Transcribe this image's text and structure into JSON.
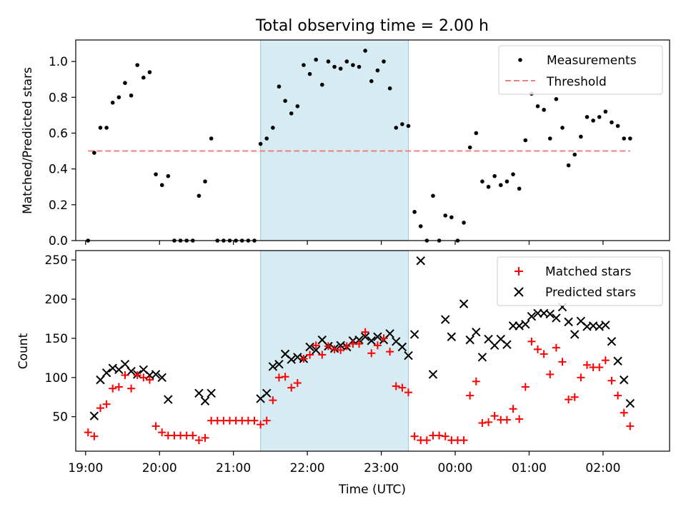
{
  "chart_data": [
    {
      "type": "scatter",
      "title": "Total observing time = 2.00 h",
      "xlabel": "",
      "ylabel": "Matched/Predicted stars",
      "xlim": [
        "18:52",
        "02:54"
      ],
      "ylim": [
        0.0,
        1.12
      ],
      "yticks": [
        "0.0",
        "0.2",
        "0.4",
        "0.6",
        "0.8",
        "1.0"
      ],
      "grid": false,
      "legend_position": "top-right",
      "highlight_region": [
        "21:22",
        "23:22"
      ],
      "series": [
        {
          "name": "Measurements",
          "marker": "dot",
          "color": "#000000",
          "points": [
            [
              "19:02",
              0.0
            ],
            [
              "19:07",
              0.49
            ],
            [
              "19:12",
              0.63
            ],
            [
              "19:17",
              0.63
            ],
            [
              "19:22",
              0.77
            ],
            [
              "19:27",
              0.8
            ],
            [
              "19:32",
              0.88
            ],
            [
              "19:37",
              0.81
            ],
            [
              "19:42",
              0.98
            ],
            [
              "19:47",
              0.91
            ],
            [
              "19:52",
              0.94
            ],
            [
              "19:57",
              0.37
            ],
            [
              "20:02",
              0.31
            ],
            [
              "20:07",
              0.36
            ],
            [
              "20:12",
              0.0
            ],
            [
              "20:17",
              0.0
            ],
            [
              "20:22",
              0.0
            ],
            [
              "20:27",
              0.0
            ],
            [
              "20:32",
              0.25
            ],
            [
              "20:37",
              0.33
            ],
            [
              "20:42",
              0.57
            ],
            [
              "20:47",
              0.0
            ],
            [
              "20:52",
              0.0
            ],
            [
              "20:57",
              0.0
            ],
            [
              "21:02",
              0.0
            ],
            [
              "21:07",
              0.0
            ],
            [
              "21:12",
              0.0
            ],
            [
              "21:17",
              0.0
            ],
            [
              "21:22",
              0.54
            ],
            [
              "21:27",
              0.57
            ],
            [
              "21:32",
              0.63
            ],
            [
              "21:37",
              0.86
            ],
            [
              "21:42",
              0.78
            ],
            [
              "21:47",
              0.71
            ],
            [
              "21:52",
              0.75
            ],
            [
              "21:57",
              0.98
            ],
            [
              "22:02",
              0.93
            ],
            [
              "22:07",
              1.01
            ],
            [
              "22:12",
              0.87
            ],
            [
              "22:17",
              1.0
            ],
            [
              "22:22",
              0.97
            ],
            [
              "22:27",
              0.96
            ],
            [
              "22:32",
              1.0
            ],
            [
              "22:37",
              0.98
            ],
            [
              "22:42",
              0.97
            ],
            [
              "22:47",
              1.06
            ],
            [
              "22:52",
              0.89
            ],
            [
              "22:57",
              0.95
            ],
            [
              "23:02",
              1.0
            ],
            [
              "23:07",
              0.85
            ],
            [
              "23:12",
              0.63
            ],
            [
              "23:17",
              0.65
            ],
            [
              "23:22",
              0.64
            ],
            [
              "23:27",
              0.16
            ],
            [
              "23:32",
              0.08
            ],
            [
              "23:37",
              0.0
            ],
            [
              "23:42",
              0.25
            ],
            [
              "23:47",
              0.0
            ],
            [
              "23:52",
              0.14
            ],
            [
              "23:57",
              0.13
            ],
            [
              "00:02",
              0.0
            ],
            [
              "00:07",
              0.1
            ],
            [
              "00:12",
              0.52
            ],
            [
              "00:17",
              0.6
            ],
            [
              "00:22",
              0.33
            ],
            [
              "00:27",
              0.3
            ],
            [
              "00:32",
              0.36
            ],
            [
              "00:37",
              0.31
            ],
            [
              "00:42",
              0.33
            ],
            [
              "00:47",
              0.37
            ],
            [
              "00:52",
              0.29
            ],
            [
              "00:57",
              0.56
            ],
            [
              "01:02",
              0.82
            ],
            [
              "01:07",
              0.75
            ],
            [
              "01:12",
              0.73
            ],
            [
              "01:17",
              0.57
            ],
            [
              "01:22",
              0.79
            ],
            [
              "01:27",
              0.63
            ],
            [
              "01:32",
              0.42
            ],
            [
              "01:37",
              0.48
            ],
            [
              "01:42",
              0.58
            ],
            [
              "01:47",
              0.69
            ],
            [
              "01:52",
              0.67
            ],
            [
              "01:57",
              0.69
            ],
            [
              "02:02",
              0.72
            ],
            [
              "02:07",
              0.66
            ],
            [
              "02:12",
              0.64
            ],
            [
              "02:17",
              0.57
            ],
            [
              "02:22",
              0.57
            ]
          ]
        },
        {
          "name": "Threshold",
          "marker": "dashed-line",
          "color": "#f08080",
          "points": [
            [
              "19:02",
              0.5
            ],
            [
              "02:22",
              0.5
            ]
          ]
        }
      ]
    },
    {
      "type": "scatter",
      "title": "",
      "xlabel": "Time (UTC)",
      "ylabel": "Count",
      "xlim": [
        "18:52",
        "02:54"
      ],
      "ylim": [
        6,
        262
      ],
      "xticks": [
        "19:00",
        "20:00",
        "21:00",
        "22:00",
        "23:00",
        "00:00",
        "01:00",
        "02:00"
      ],
      "yticks": [
        "50",
        "100",
        "150",
        "200",
        "250"
      ],
      "grid": false,
      "legend_position": "top-right",
      "highlight_region": [
        "21:22",
        "23:22"
      ],
      "series": [
        {
          "name": "Matched stars",
          "marker": "plus",
          "color": "#ff0000",
          "points": [
            [
              "19:02",
              30
            ],
            [
              "19:07",
              25
            ],
            [
              "19:12",
              61
            ],
            [
              "19:17",
              66
            ],
            [
              "19:22",
              86
            ],
            [
              "19:27",
              88
            ],
            [
              "19:32",
              103
            ],
            [
              "19:37",
              86
            ],
            [
              "19:42",
              103
            ],
            [
              "19:47",
              100
            ],
            [
              "19:52",
              97
            ],
            [
              "19:57",
              38
            ],
            [
              "20:02",
              30
            ],
            [
              "20:07",
              26
            ],
            [
              "20:12",
              26
            ],
            [
              "20:17",
              26
            ],
            [
              "20:22",
              26
            ],
            [
              "20:27",
              26
            ],
            [
              "20:32",
              20
            ],
            [
              "20:37",
              23
            ],
            [
              "20:42",
              45
            ],
            [
              "20:47",
              45
            ],
            [
              "20:52",
              45
            ],
            [
              "20:57",
              45
            ],
            [
              "21:02",
              45
            ],
            [
              "21:07",
              45
            ],
            [
              "21:12",
              45
            ],
            [
              "21:17",
              45
            ],
            [
              "21:22",
              40
            ],
            [
              "21:27",
              45
            ],
            [
              "21:32",
              71
            ],
            [
              "21:37",
              100
            ],
            [
              "21:42",
              101
            ],
            [
              "21:47",
              87
            ],
            [
              "21:52",
              93
            ],
            [
              "21:57",
              124
            ],
            [
              "22:02",
              129
            ],
            [
              "22:07",
              141
            ],
            [
              "22:12",
              129
            ],
            [
              "22:17",
              140
            ],
            [
              "22:22",
              136
            ],
            [
              "22:27",
              135
            ],
            [
              "22:32",
              140
            ],
            [
              "22:37",
              143
            ],
            [
              "22:42",
              143
            ],
            [
              "22:47",
              158
            ],
            [
              "22:52",
              131
            ],
            [
              "22:57",
              141
            ],
            [
              "23:02",
              150
            ],
            [
              "23:07",
              133
            ],
            [
              "23:12",
              89
            ],
            [
              "23:17",
              87
            ],
            [
              "23:22",
              81
            ],
            [
              "23:27",
              25
            ],
            [
              "23:32",
              20
            ],
            [
              "23:37",
              20
            ],
            [
              "23:42",
              26
            ],
            [
              "23:47",
              26
            ],
            [
              "23:52",
              25
            ],
            [
              "23:57",
              20
            ],
            [
              "00:02",
              20
            ],
            [
              "00:07",
              20
            ],
            [
              "00:12",
              77
            ],
            [
              "00:17",
              95
            ],
            [
              "00:22",
              42
            ],
            [
              "00:27",
              43
            ],
            [
              "00:32",
              51
            ],
            [
              "00:37",
              46
            ],
            [
              "00:42",
              46
            ],
            [
              "00:47",
              60
            ],
            [
              "00:52",
              47
            ],
            [
              "00:57",
              88
            ],
            [
              "01:02",
              146
            ],
            [
              "01:07",
              136
            ],
            [
              "01:12",
              130
            ],
            [
              "01:17",
              104
            ],
            [
              "01:22",
              138
            ],
            [
              "01:27",
              120
            ],
            [
              "01:32",
              72
            ],
            [
              "01:37",
              75
            ],
            [
              "01:42",
              100
            ],
            [
              "01:47",
              116
            ],
            [
              "01:52",
              113
            ],
            [
              "01:57",
              113
            ],
            [
              "02:02",
              122
            ],
            [
              "02:07",
              96
            ],
            [
              "02:12",
              77
            ],
            [
              "02:17",
              55
            ],
            [
              "02:22",
              38
            ]
          ]
        },
        {
          "name": "Predicted stars",
          "marker": "x",
          "color": "#000000",
          "points": [
            [
              "19:07",
              51
            ],
            [
              "19:12",
              97
            ],
            [
              "19:17",
              106
            ],
            [
              "19:22",
              112
            ],
            [
              "19:27",
              110
            ],
            [
              "19:32",
              117
            ],
            [
              "19:37",
              108
            ],
            [
              "19:42",
              104
            ],
            [
              "19:47",
              110
            ],
            [
              "19:52",
              103
            ],
            [
              "19:57",
              104
            ],
            [
              "20:02",
              100
            ],
            [
              "20:07",
              72
            ],
            [
              "20:32",
              80
            ],
            [
              "20:37",
              70
            ],
            [
              "20:42",
              80
            ],
            [
              "21:22",
              73
            ],
            [
              "21:27",
              80
            ],
            [
              "21:32",
              114
            ],
            [
              "21:37",
              117
            ],
            [
              "21:42",
              130
            ],
            [
              "21:47",
              123
            ],
            [
              "21:52",
              126
            ],
            [
              "21:57",
              124
            ],
            [
              "22:02",
              139
            ],
            [
              "22:07",
              135
            ],
            [
              "22:12",
              148
            ],
            [
              "22:17",
              140
            ],
            [
              "22:22",
              137
            ],
            [
              "22:27",
              141
            ],
            [
              "22:32",
              139
            ],
            [
              "22:37",
              147
            ],
            [
              "22:42",
              148
            ],
            [
              "22:47",
              152
            ],
            [
              "22:52",
              147
            ],
            [
              "22:57",
              152
            ],
            [
              "23:02",
              148
            ],
            [
              "23:07",
              156
            ],
            [
              "23:12",
              146
            ],
            [
              "23:17",
              139
            ],
            [
              "23:22",
              128
            ],
            [
              "23:27",
              155
            ],
            [
              "23:32",
              249
            ],
            [
              "23:42",
              104
            ],
            [
              "23:52",
              174
            ],
            [
              "23:57",
              152
            ],
            [
              "00:07",
              194
            ],
            [
              "00:12",
              148
            ],
            [
              "00:17",
              158
            ],
            [
              "00:22",
              126
            ],
            [
              "00:27",
              149
            ],
            [
              "00:32",
              141
            ],
            [
              "00:37",
              149
            ],
            [
              "00:42",
              142
            ],
            [
              "00:47",
              166
            ],
            [
              "00:52",
              166
            ],
            [
              "00:57",
              168
            ],
            [
              "01:02",
              178
            ],
            [
              "01:07",
              182
            ],
            [
              "01:12",
              182
            ],
            [
              "01:17",
              181
            ],
            [
              "01:22",
              176
            ],
            [
              "01:27",
              190
            ],
            [
              "01:32",
              171
            ],
            [
              "01:37",
              155
            ],
            [
              "01:42",
              172
            ],
            [
              "01:47",
              165
            ],
            [
              "01:52",
              166
            ],
            [
              "01:57",
              165
            ],
            [
              "02:02",
              167
            ],
            [
              "02:07",
              146
            ],
            [
              "02:12",
              121
            ],
            [
              "02:17",
              97
            ],
            [
              "02:22",
              67
            ]
          ]
        }
      ]
    }
  ]
}
